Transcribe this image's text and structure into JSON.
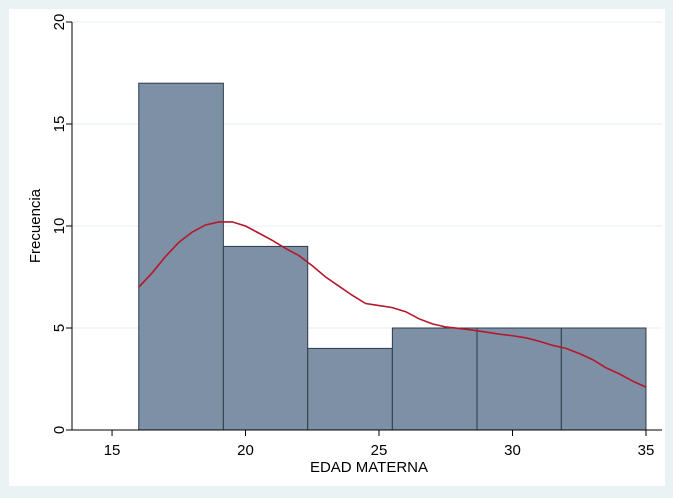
{
  "chart_data": {
    "type": "bar",
    "xlabel": "EDAD MATERNA",
    "ylabel": "Frecuencia",
    "xlim": [
      13.5,
      35.6
    ],
    "ylim": [
      0,
      20
    ],
    "xticks": [
      15,
      20,
      25,
      30,
      35
    ],
    "yticks": [
      0,
      5,
      10,
      15,
      20
    ],
    "grid": true,
    "bins": [
      {
        "x0": 16.0,
        "x1": 19.17,
        "value": 17
      },
      {
        "x0": 19.17,
        "x1": 22.33,
        "value": 9
      },
      {
        "x0": 22.33,
        "x1": 25.5,
        "value": 4
      },
      {
        "x0": 25.5,
        "x1": 28.67,
        "value": 5
      },
      {
        "x0": 28.67,
        "x1": 31.83,
        "value": 5
      },
      {
        "x0": 31.83,
        "x1": 35.0,
        "value": 5
      }
    ],
    "density_curve": {
      "x": [
        16.0,
        16.5,
        17.0,
        17.5,
        18.0,
        18.5,
        19.0,
        19.5,
        20.0,
        20.5,
        21.0,
        21.5,
        22.0,
        22.5,
        23.0,
        23.5,
        24.0,
        24.5,
        25.0,
        25.5,
        26.0,
        26.5,
        27.0,
        27.5,
        28.0,
        28.5,
        29.0,
        29.5,
        30.0,
        30.5,
        31.0,
        31.5,
        32.0,
        32.5,
        33.0,
        33.5,
        34.0,
        34.5,
        35.0
      ],
      "y": [
        7.0,
        7.7,
        8.5,
        9.2,
        9.7,
        10.05,
        10.2,
        10.2,
        10.0,
        9.65,
        9.3,
        8.9,
        8.55,
        8.05,
        7.5,
        7.05,
        6.6,
        6.2,
        6.1,
        6.0,
        5.8,
        5.45,
        5.2,
        5.05,
        4.98,
        4.9,
        4.8,
        4.7,
        4.62,
        4.52,
        4.35,
        4.15,
        4.0,
        3.75,
        3.45,
        3.05,
        2.75,
        2.4,
        2.1
      ],
      "color": "#b5172b"
    },
    "colors": {
      "bar_fill": "#7d90a6",
      "bar_stroke": "#2e3b4b",
      "curve": "#b5172b",
      "grid": "#e6eef0",
      "plot_bg": "#ffffff",
      "outer_bg": "#eaf2f3"
    }
  }
}
